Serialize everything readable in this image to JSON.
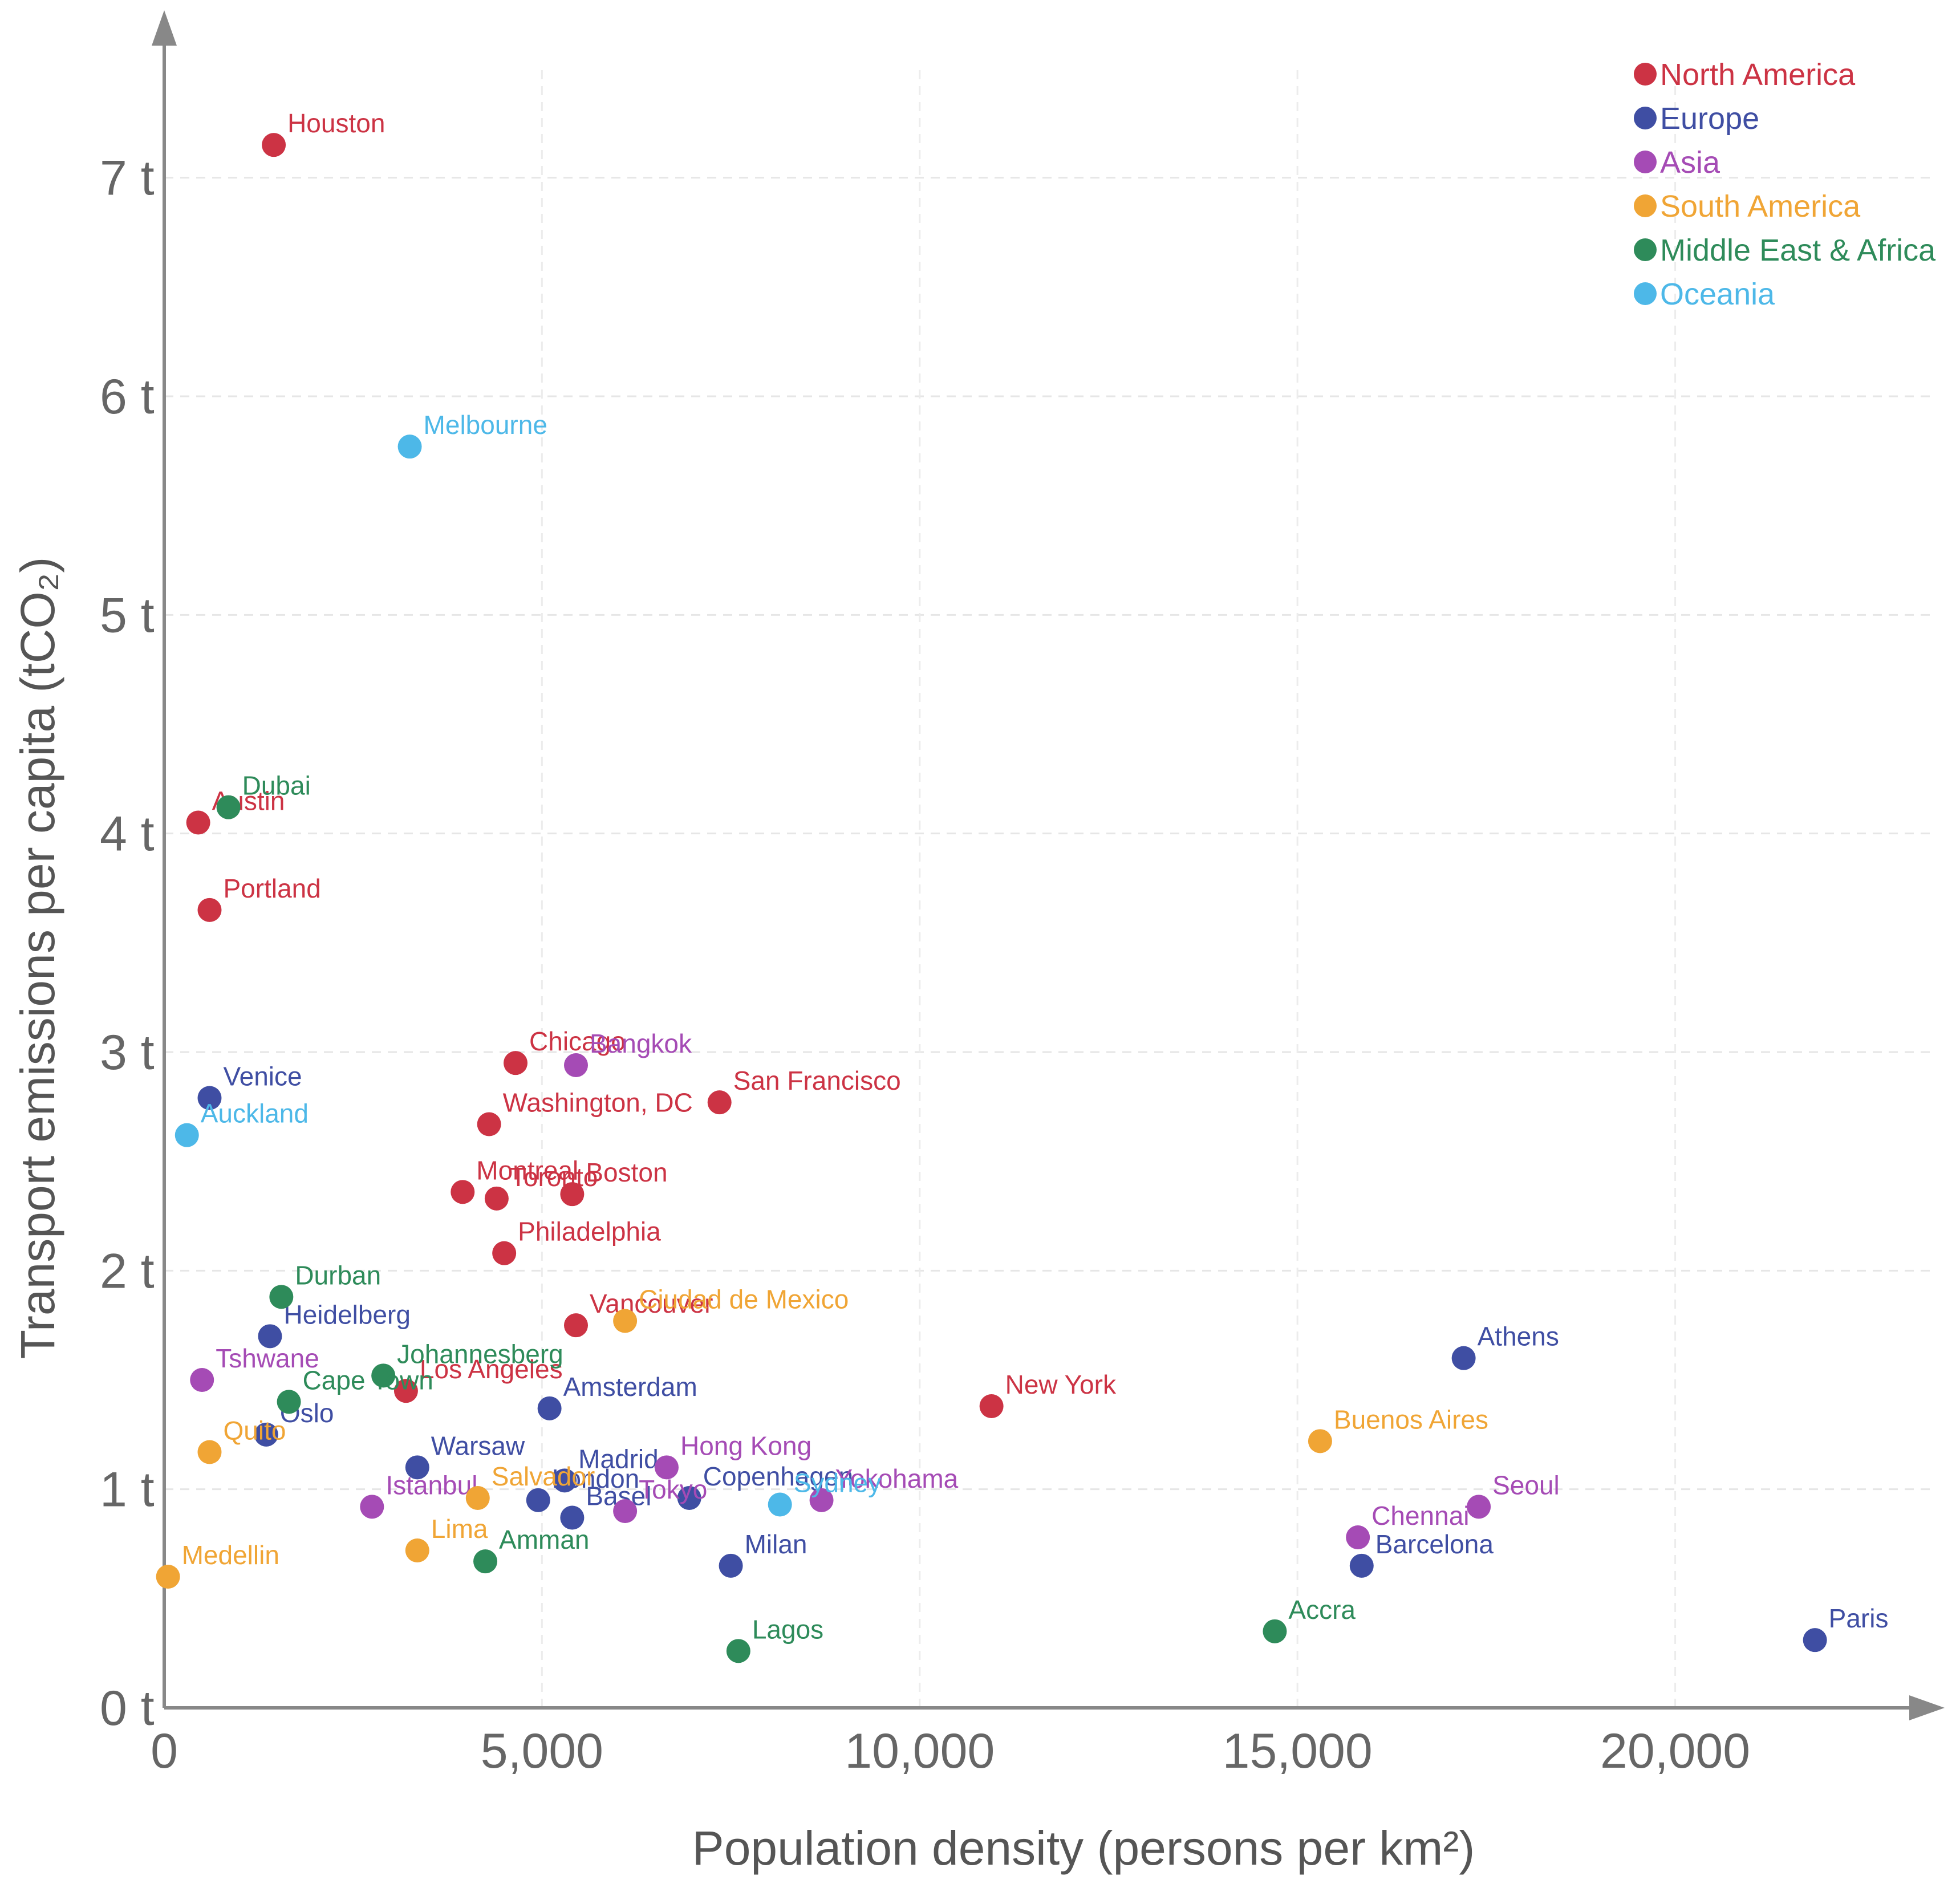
{
  "chart_data": {
    "type": "scatter",
    "title": "",
    "xlabel": "Population density (persons per km²)",
    "ylabel": "Transport emissions per capita (tCO₂)",
    "xlim": [
      0,
      23000
    ],
    "ylim": [
      0,
      7.5
    ],
    "x_ticks": [
      {
        "value": 0,
        "label": "0"
      },
      {
        "value": 5000,
        "label": "5,000"
      },
      {
        "value": 10000,
        "label": "10,000"
      },
      {
        "value": 15000,
        "label": "15,000"
      },
      {
        "value": 20000,
        "label": "20,000"
      }
    ],
    "y_ticks": [
      {
        "value": 0,
        "label": "0 t"
      },
      {
        "value": 1,
        "label": "1 t"
      },
      {
        "value": 2,
        "label": "2 t"
      },
      {
        "value": 3,
        "label": "3 t"
      },
      {
        "value": 4,
        "label": "4 t"
      },
      {
        "value": 5,
        "label": "5 t"
      },
      {
        "value": 6,
        "label": "6 t"
      },
      {
        "value": 7,
        "label": "7 t"
      }
    ],
    "grid": "dashed",
    "legend_position": "top-right",
    "series": [
      {
        "name": "North America",
        "color": "#cc3344",
        "points": [
          {
            "city": "Houston",
            "x": 1450,
            "y": 7.15
          },
          {
            "city": "Austin",
            "x": 450,
            "y": 4.05
          },
          {
            "city": "Portland",
            "x": 600,
            "y": 3.65
          },
          {
            "city": "Chicago",
            "x": 4650,
            "y": 2.95
          },
          {
            "city": "San Francisco",
            "x": 7350,
            "y": 2.77
          },
          {
            "city": "Washington, DC",
            "x": 4300,
            "y": 2.67
          },
          {
            "city": "Montreal",
            "x": 3950,
            "y": 2.36
          },
          {
            "city": "Toronto",
            "x": 4400,
            "y": 2.33
          },
          {
            "city": "Boston",
            "x": 5400,
            "y": 2.35
          },
          {
            "city": "Philadelphia",
            "x": 4500,
            "y": 2.08
          },
          {
            "city": "Vancouver",
            "x": 5450,
            "y": 1.75
          },
          {
            "city": "Los Angeles",
            "x": 3200,
            "y": 1.45
          },
          {
            "city": "New York",
            "x": 10950,
            "y": 1.38
          }
        ]
      },
      {
        "name": "Europe",
        "color": "#3f4ea3",
        "points": [
          {
            "city": "Venice",
            "x": 600,
            "y": 2.79
          },
          {
            "city": "Heidelberg",
            "x": 1400,
            "y": 1.7
          },
          {
            "city": "Oslo",
            "x": 1350,
            "y": 1.25
          },
          {
            "city": "Amsterdam",
            "x": 5100,
            "y": 1.37
          },
          {
            "city": "Warsaw",
            "x": 3350,
            "y": 1.1
          },
          {
            "city": "Madrid",
            "x": 5300,
            "y": 1.04
          },
          {
            "city": "London",
            "x": 4950,
            "y": 0.95
          },
          {
            "city": "Basel",
            "x": 5400,
            "y": 0.87
          },
          {
            "city": "Copenhagen",
            "x": 6950,
            "y": 0.96
          },
          {
            "city": "Milan",
            "x": 7500,
            "y": 0.65
          },
          {
            "city": "Barcelona",
            "x": 15850,
            "y": 0.65
          },
          {
            "city": "Athens",
            "x": 17200,
            "y": 1.6
          },
          {
            "city": "Paris",
            "x": 21850,
            "y": 0.31
          }
        ]
      },
      {
        "name": "Asia",
        "color": "#a54bb5",
        "points": [
          {
            "city": "Bangkok",
            "x": 5450,
            "y": 2.94
          },
          {
            "city": "Tshwane",
            "x": 500,
            "y": 1.5
          },
          {
            "city": "Hong Kong",
            "x": 6650,
            "y": 1.1
          },
          {
            "city": "Istanbul",
            "x": 2750,
            "y": 0.92
          },
          {
            "city": "Tokyo",
            "x": 6100,
            "y": 0.9
          },
          {
            "city": "Yokohama",
            "x": 8700,
            "y": 0.95
          },
          {
            "city": "Chennai",
            "x": 15800,
            "y": 0.78
          },
          {
            "city": "Seoul",
            "x": 17400,
            "y": 0.92
          }
        ]
      },
      {
        "name": "South America",
        "color": "#f0a535",
        "points": [
          {
            "city": "Ciudad de Mexico",
            "x": 6100,
            "y": 1.77
          },
          {
            "city": "Quito",
            "x": 600,
            "y": 1.17
          },
          {
            "city": "Salvador",
            "x": 4150,
            "y": 0.96
          },
          {
            "city": "Lima",
            "x": 3350,
            "y": 0.72
          },
          {
            "city": "Medellin",
            "x": 50,
            "y": 0.6
          },
          {
            "city": "Buenos Aires",
            "x": 15300,
            "y": 1.22
          }
        ]
      },
      {
        "name": "Middle East & Africa",
        "color": "#2e8b5a",
        "points": [
          {
            "city": "Dubai",
            "x": 850,
            "y": 4.12
          },
          {
            "city": "Durban",
            "x": 1550,
            "y": 1.88
          },
          {
            "city": "Johannesberg",
            "x": 2900,
            "y": 1.52
          },
          {
            "city": "Cape Town",
            "x": 1650,
            "y": 1.4
          },
          {
            "city": "Amman",
            "x": 4250,
            "y": 0.67
          },
          {
            "city": "Lagos",
            "x": 7600,
            "y": 0.26
          },
          {
            "city": "Accra",
            "x": 14700,
            "y": 0.35
          }
        ]
      },
      {
        "name": "Oceania",
        "color": "#4db8e8",
        "points": [
          {
            "city": "Melbourne",
            "x": 3250,
            "y": 5.77
          },
          {
            "city": "Auckland",
            "x": 300,
            "y": 2.62
          },
          {
            "city": "Sydney",
            "x": 8150,
            "y": 0.93
          }
        ]
      }
    ]
  }
}
